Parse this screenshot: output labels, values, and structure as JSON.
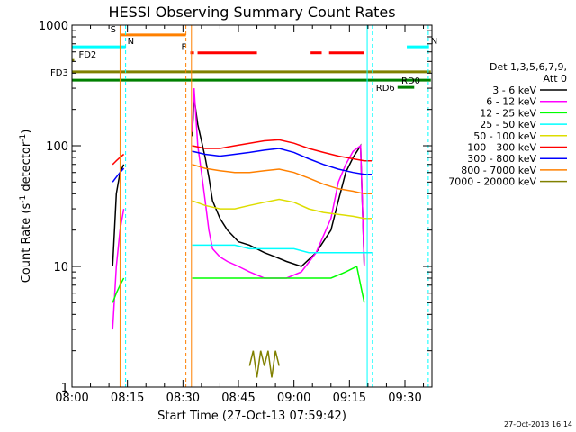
{
  "chart_data": {
    "type": "line",
    "title": "HESSI Observing Summary Count Rates",
    "xlabel": "Start Time (27-Oct-13 07:59:42)",
    "ylabel": "Count Rate (s⁻¹ detector⁻¹)",
    "ylabel_main": "Count Rate (s",
    "ylabel_sup1": "-1",
    "ylabel_mid": " detector",
    "ylabel_sup2": "-1",
    "ylabel_end": ")",
    "y_scale": "log",
    "ylim": [
      1,
      1000
    ],
    "xlim": [
      "08:00",
      "09:37"
    ],
    "x_ticks": [
      {
        "t": 0,
        "label": "08:00"
      },
      {
        "t": 15,
        "label": "08:15"
      },
      {
        "t": 30,
        "label": "08:30"
      },
      {
        "t": 45,
        "label": "08:45"
      },
      {
        "t": 60,
        "label": "09:00"
      },
      {
        "t": 75,
        "label": "09:15"
      },
      {
        "t": 90,
        "label": "09:30"
      }
    ],
    "y_ticks": [
      {
        "v": 1,
        "label": "1"
      },
      {
        "v": 10,
        "label": "10"
      },
      {
        "v": 100,
        "label": "100"
      },
      {
        "v": 1000,
        "label": "1000"
      }
    ],
    "legend": {
      "title1": "Det 1,3,5,6,7,9,",
      "title2": "Att 0",
      "placement": "right"
    },
    "timestamp": "27-Oct-2013 16:14",
    "series": [
      {
        "name": "3 - 6 keV",
        "color": "#000000",
        "segments": [
          [
            [
              11,
              10
            ],
            [
              12,
              40
            ],
            [
              13,
              60
            ],
            [
              14,
              70
            ]
          ],
          [
            [
              32.5,
              120
            ],
            [
              33,
              250
            ],
            [
              34,
              150
            ],
            [
              35,
              110
            ],
            [
              36,
              80
            ],
            [
              37,
              55
            ],
            [
              38,
              35
            ],
            [
              40,
              25
            ],
            [
              42,
              20
            ],
            [
              45,
              16
            ],
            [
              48,
              15
            ],
            [
              52,
              13
            ],
            [
              55,
              12
            ],
            [
              58,
              11
            ],
            [
              62,
              10
            ],
            [
              66,
              13
            ],
            [
              70,
              20
            ],
            [
              72,
              35
            ],
            [
              74,
              60
            ],
            [
              76,
              80
            ],
            [
              78,
              100
            ],
            [
              79,
              10
            ]
          ]
        ]
      },
      {
        "name": "6 - 12 keV",
        "color": "#ff00ff",
        "segments": [
          [
            [
              11,
              3
            ],
            [
              12,
              10
            ],
            [
              13,
              20
            ],
            [
              14,
              30
            ]
          ],
          [
            [
              32.5,
              130
            ],
            [
              33,
              300
            ],
            [
              34,
              100
            ],
            [
              35,
              60
            ],
            [
              36,
              35
            ],
            [
              37,
              20
            ],
            [
              38,
              14
            ],
            [
              40,
              12
            ],
            [
              42,
              11
            ],
            [
              45,
              10
            ],
            [
              48,
              9
            ],
            [
              52,
              8
            ],
            [
              55,
              8
            ],
            [
              58,
              8
            ],
            [
              62,
              9
            ],
            [
              66,
              13
            ],
            [
              70,
              25
            ],
            [
              72,
              50
            ],
            [
              74,
              70
            ],
            [
              76,
              90
            ],
            [
              78,
              100
            ],
            [
              79,
              10
            ]
          ]
        ]
      },
      {
        "name": "12 - 25 keV",
        "color": "#00ff00",
        "segments": [
          [
            [
              11,
              5
            ],
            [
              12,
              6
            ],
            [
              13,
              7
            ],
            [
              14,
              8
            ]
          ],
          [
            [
              32.5,
              8
            ],
            [
              35,
              8
            ],
            [
              38,
              8
            ],
            [
              42,
              8
            ],
            [
              46,
              8
            ],
            [
              50,
              8
            ],
            [
              54,
              8
            ],
            [
              58,
              8
            ],
            [
              62,
              8
            ],
            [
              66,
              8
            ],
            [
              70,
              8
            ],
            [
              74,
              9
            ],
            [
              77,
              10
            ],
            [
              79,
              5
            ]
          ]
        ]
      },
      {
        "name": "25 - 50 keV",
        "color": "#00ffff",
        "segments": [
          [
            [
              32.5,
              15
            ],
            [
              36,
              15
            ],
            [
              40,
              15
            ],
            [
              44,
              15
            ],
            [
              48,
              14
            ],
            [
              52,
              14
            ],
            [
              56,
              14
            ],
            [
              60,
              14
            ],
            [
              64,
              13
            ],
            [
              68,
              13
            ],
            [
              72,
              13
            ],
            [
              76,
              13
            ],
            [
              79,
              13
            ],
            [
              81,
              13
            ]
          ]
        ]
      },
      {
        "name": "50 - 100 keV",
        "color": "#dddd00",
        "segments": [
          [
            [
              32.5,
              35
            ],
            [
              36,
              32
            ],
            [
              40,
              30
            ],
            [
              44,
              30
            ],
            [
              48,
              32
            ],
            [
              52,
              34
            ],
            [
              56,
              36
            ],
            [
              60,
              34
            ],
            [
              64,
              30
            ],
            [
              68,
              28
            ],
            [
              72,
              27
            ],
            [
              76,
              26
            ],
            [
              79,
              25
            ],
            [
              81,
              25
            ]
          ]
        ]
      },
      {
        "name": "100 - 300 keV",
        "color": "#ff0000",
        "segments": [
          [
            [
              11,
              70
            ],
            [
              12,
              75
            ],
            [
              13,
              80
            ],
            [
              14,
              85
            ]
          ],
          [
            [
              32.5,
              100
            ],
            [
              36,
              95
            ],
            [
              40,
              95
            ],
            [
              44,
              100
            ],
            [
              48,
              105
            ],
            [
              52,
              110
            ],
            [
              56,
              112
            ],
            [
              60,
              105
            ],
            [
              64,
              95
            ],
            [
              68,
              88
            ],
            [
              72,
              82
            ],
            [
              76,
              78
            ],
            [
              79,
              75
            ],
            [
              81,
              75
            ]
          ]
        ]
      },
      {
        "name": "300 - 800 keV",
        "color": "#0000ff",
        "segments": [
          [
            [
              11,
              50
            ],
            [
              12,
              55
            ],
            [
              13,
              60
            ],
            [
              14,
              65
            ]
          ],
          [
            [
              32.5,
              90
            ],
            [
              36,
              85
            ],
            [
              40,
              82
            ],
            [
              44,
              85
            ],
            [
              48,
              88
            ],
            [
              52,
              92
            ],
            [
              56,
              95
            ],
            [
              60,
              88
            ],
            [
              64,
              78
            ],
            [
              68,
              70
            ],
            [
              72,
              64
            ],
            [
              76,
              60
            ],
            [
              79,
              58
            ],
            [
              81,
              58
            ]
          ]
        ]
      },
      {
        "name": "800 - 7000 keV",
        "color": "#ff8000",
        "segments": [
          [
            [
              32.5,
              70
            ],
            [
              36,
              65
            ],
            [
              40,
              62
            ],
            [
              44,
              60
            ],
            [
              48,
              60
            ],
            [
              52,
              62
            ],
            [
              56,
              64
            ],
            [
              60,
              60
            ],
            [
              64,
              54
            ],
            [
              68,
              48
            ],
            [
              72,
              44
            ],
            [
              76,
              42
            ],
            [
              79,
              40
            ],
            [
              81,
              40
            ]
          ]
        ]
      },
      {
        "name": "7000 - 20000 keV",
        "color": "#808000",
        "segments": [
          [
            [
              48,
              1.5
            ],
            [
              49,
              2
            ],
            [
              50,
              1.2
            ],
            [
              51,
              2
            ],
            [
              52,
              1.5
            ],
            [
              53,
              2
            ],
            [
              54,
              1.2
            ],
            [
              55,
              2
            ],
            [
              56,
              1.5
            ]
          ]
        ]
      }
    ],
    "flag_bars": [
      {
        "label": "S",
        "color": "#ff8000",
        "start": 13.3,
        "end": 30.8,
        "level": 830,
        "style": "solid"
      },
      {
        "label": "N",
        "color": "#00ffff",
        "start": 0,
        "end": 14.5,
        "level": 660,
        "style": "solid"
      },
      {
        "label": "N",
        "color": "#00ffff",
        "start": 90.5,
        "end": 96.5,
        "level": 660,
        "style": "solid"
      },
      {
        "label": "F",
        "color": "#ff0000",
        "start": 32,
        "end": 50,
        "level": 590,
        "style": "dashed-break"
      },
      {
        "label": "",
        "color": "#ff0000",
        "start": 64.5,
        "end": 67.5,
        "level": 590,
        "style": "solid"
      },
      {
        "label": "",
        "color": "#ff0000",
        "start": 69.5,
        "end": 79,
        "level": 590,
        "style": "solid"
      },
      {
        "label": "FD2",
        "color": "#808000",
        "start": 0,
        "end": 0.6,
        "level": 510,
        "style": "solid"
      },
      {
        "label": "FD3",
        "color": "#808000",
        "start": 0,
        "end": 97,
        "level": 410,
        "style": "solid"
      },
      {
        "label": "RD0",
        "color": "#008000",
        "start": 0,
        "end": 97,
        "level": 350,
        "style": "solid"
      },
      {
        "label": "RD6",
        "color": "#008000",
        "start": 88,
        "end": 92.5,
        "level": 305,
        "style": "solid"
      }
    ],
    "vlines": [
      {
        "t": 13.0,
        "color": "#ff8000",
        "style": "solid"
      },
      {
        "t": 14.5,
        "color": "#00ffff",
        "style": "dashed"
      },
      {
        "t": 30.8,
        "color": "#ff8000",
        "style": "dashed"
      },
      {
        "t": 32.3,
        "color": "#ff8000",
        "style": "solid"
      },
      {
        "t": 79.8,
        "color": "#00ffff",
        "style": "solid"
      },
      {
        "t": 81.2,
        "color": "#00ffff",
        "style": "dashed"
      },
      {
        "t": 96.3,
        "color": "#00ffff",
        "style": "dashed"
      }
    ]
  }
}
